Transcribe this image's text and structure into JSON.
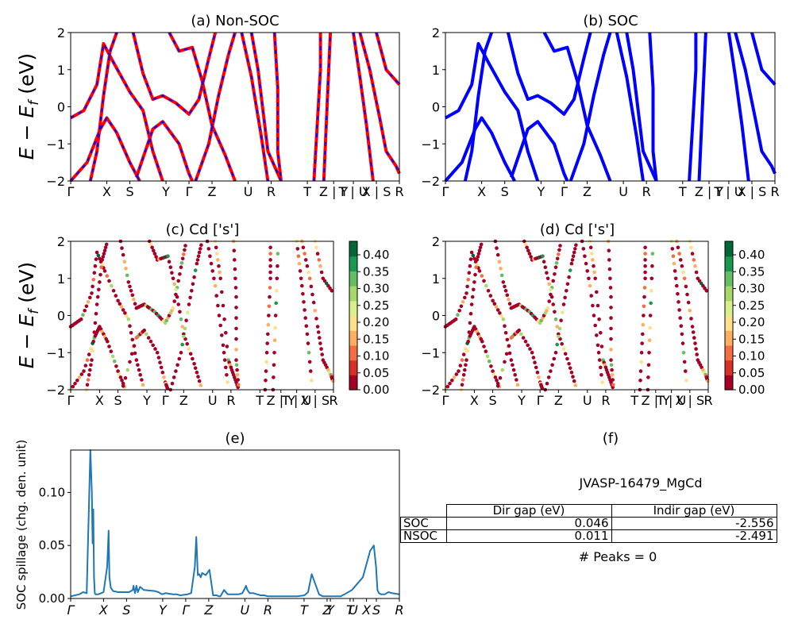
{
  "labels": {
    "panel_a_title": "(a) Non-SOC",
    "panel_b_title": "(b) SOC",
    "panel_c_title": "(c)  Cd ['s']",
    "panel_d_title": "(d) Cd ['s']",
    "panel_e_title": "(e)",
    "panel_f_title": "(f)",
    "energy_axis_label": "E − E_f (eV)",
    "spillage_axis_label": "SOC spillage (chg. den. unit)",
    "material_id": "JVASP-16479_MgCd",
    "peaks_text": "# Peaks = 0"
  },
  "kpath_labels": [
    "Γ",
    "X",
    "S",
    "Y",
    "Γ",
    "Z",
    "U",
    "R",
    "T",
    "Z | Y",
    "T | U",
    "X | S",
    "R"
  ],
  "kpath_labels_e": [
    "Γ",
    "X",
    "S",
    "Y",
    "Γ",
    "Z",
    "U",
    "R",
    "T",
    "Z",
    "Y",
    "T",
    "U",
    "X",
    "S",
    "R"
  ],
  "table": {
    "col_headers": [
      "Dir gap (eV)",
      "Indir gap (eV)"
    ],
    "rows": [
      {
        "label": "SOC",
        "dir": "0.046",
        "indir": "-2.556"
      },
      {
        "label": "NSOC",
        "dir": "0.011",
        "indir": "-2.491"
      }
    ]
  },
  "chart_data": [
    {
      "type": "line",
      "title": "(a) Non-SOC",
      "ylabel": "E − E_f (eV)",
      "ylim": [
        -2,
        2
      ],
      "yticks": [
        -2,
        -1,
        0,
        1,
        2
      ],
      "xticks": [
        "Γ",
        "X",
        "S",
        "Y",
        "Γ",
        "Z",
        "U",
        "R",
        "T",
        "Z | Y",
        "T | U",
        "X | S",
        "R"
      ],
      "colors": {
        "nonsoc": "#ff0000",
        "soc_overlay": "#0000ff"
      },
      "note_series": "band structure along high-symmetry path"
    },
    {
      "type": "line",
      "title": "(b) SOC",
      "ylim": [
        -2,
        2
      ],
      "yticks": [
        -2,
        -1,
        0,
        1,
        2
      ],
      "xticks": [
        "Γ",
        "X",
        "S",
        "Y",
        "Γ",
        "Z",
        "U",
        "R",
        "T",
        "Z | Y",
        "T | U",
        "X | S",
        "R"
      ],
      "colors": {
        "soc": "#0000ff"
      }
    },
    {
      "type": "scatter",
      "title": "(c)  Cd ['s']",
      "ylabel": "E − E_f (eV)",
      "ylim": [
        -2,
        2
      ],
      "yticks": [
        -2,
        -1,
        0,
        1,
        2
      ],
      "colorbar": {
        "min": 0.0,
        "max": 0.44,
        "ticks": [
          "0.00",
          "0.05",
          "0.10",
          "0.15",
          "0.20",
          "0.25",
          "0.30",
          "0.35",
          "0.40"
        ],
        "colormap": "RdYlGn"
      }
    },
    {
      "type": "scatter",
      "title": "(d) Cd ['s']",
      "ylim": [
        -2,
        2
      ],
      "yticks": [
        -2,
        -1,
        0,
        1,
        2
      ],
      "colorbar": {
        "min": 0.0,
        "max": 0.44,
        "ticks": [
          "0.00",
          "0.05",
          "0.10",
          "0.15",
          "0.20",
          "0.25",
          "0.30",
          "0.35",
          "0.40"
        ],
        "colormap": "RdYlGn"
      }
    },
    {
      "type": "line",
      "title": "(e)",
      "ylabel": "SOC spillage (chg. den. unit)",
      "ylim": [
        0,
        0.14
      ],
      "yticks": [
        "0.00",
        "0.05",
        "0.10"
      ],
      "color": "#1f77b4",
      "x": [
        0,
        6,
        12,
        17,
        22,
        27,
        29,
        30,
        31,
        32,
        33,
        34,
        35,
        38,
        45,
        50,
        52,
        53,
        54,
        55,
        58,
        65,
        80,
        85,
        86,
        88,
        90,
        92,
        95,
        100,
        115,
        120,
        125,
        130,
        140,
        145,
        150,
        160,
        165,
        170,
        172,
        173,
        174,
        176,
        178,
        180,
        185,
        190,
        195,
        200,
        203,
        205,
        210,
        215,
        220,
        230,
        235,
        238,
        240,
        242,
        245,
        250,
        255,
        260,
        265,
        270,
        275,
        280,
        285,
        290,
        300,
        310,
        320,
        325,
        330,
        340,
        345,
        350,
        360,
        365,
        368,
        370,
        372,
        375,
        385,
        400,
        410,
        415,
        418,
        420,
        422,
        425,
        430,
        435,
        440,
        450
      ],
      "values": [
        0.002,
        0.003,
        0.004,
        0.006,
        0.005,
        0.14,
        0.1,
        0.052,
        0.084,
        0.02,
        0.005,
        0.004,
        0.004,
        0.004,
        0.006,
        0.03,
        0.064,
        0.02,
        0.015,
        0.01,
        0.007,
        0.006,
        0.006,
        0.008,
        0.012,
        0.005,
        0.012,
        0.006,
        0.011,
        0.008,
        0.007,
        0.006,
        0.004,
        0.005,
        0.004,
        0.004,
        0.003,
        0.004,
        0.005,
        0.03,
        0.058,
        0.04,
        0.022,
        0.023,
        0.02,
        0.024,
        0.022,
        0.027,
        0.003,
        0.003,
        0.002,
        0.002,
        0.008,
        0.004,
        0.004,
        0.004,
        0.005,
        0.009,
        0.012,
        0.008,
        0.005,
        0.005,
        0.004,
        0.003,
        0.003,
        0.002,
        0.002,
        0.002,
        0.002,
        0.002,
        0.002,
        0.002,
        0.003,
        0.006,
        0.023,
        0.004,
        0.002,
        0.002,
        0.002,
        0.002,
        0.002,
        0.002,
        0.003,
        0.004,
        0.008,
        0.02,
        0.045,
        0.05,
        0.03,
        0.008,
        0.005,
        0.004,
        0.004,
        0.006,
        0.005,
        0.004
      ]
    }
  ]
}
